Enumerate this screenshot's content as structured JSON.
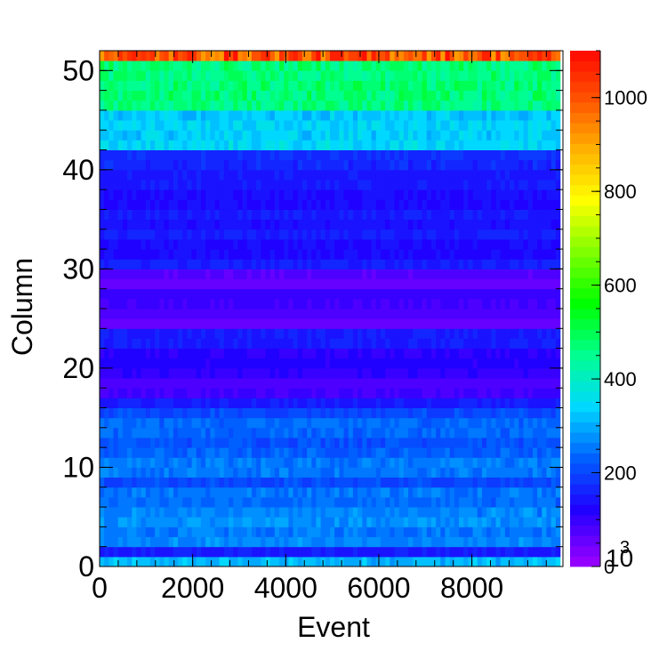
{
  "chart_data": {
    "type": "heatmap",
    "xlabel": "Event",
    "ylabel": "Column",
    "xlim": [
      0,
      9900
    ],
    "ylim": [
      0,
      52
    ],
    "x_ticks": [
      "0",
      "2000",
      "4000",
      "6000",
      "8000"
    ],
    "y_ticks": [
      "0",
      "10",
      "20",
      "30",
      "40",
      "50"
    ],
    "colorbar": {
      "min": 0,
      "max": 1100,
      "tick_labels": [
        "0",
        "200",
        "400",
        "600",
        "800",
        "1000"
      ],
      "exponent_label": "10",
      "exponent": "3",
      "palette": [
        "#9400ff",
        "#2000ff",
        "#0060ff",
        "#00d8ff",
        "#00ff90",
        "#00ff00",
        "#80ff00",
        "#ffff00",
        "#ffb000",
        "#ff5000",
        "#ff0000"
      ]
    },
    "row_values": [
      310,
      150,
      265,
      255,
      275,
      265,
      240,
      255,
      205,
      250,
      255,
      230,
      215,
      235,
      240,
      205,
      150,
      90,
      80,
      105,
      120,
      110,
      150,
      150,
      60,
      75,
      90,
      100,
      55,
      70,
      160,
      130,
      130,
      155,
      140,
      150,
      130,
      135,
      150,
      145,
      165,
      170,
      345,
      335,
      340,
      325,
      465,
      470,
      470,
      465,
      470,
      1000
    ]
  }
}
